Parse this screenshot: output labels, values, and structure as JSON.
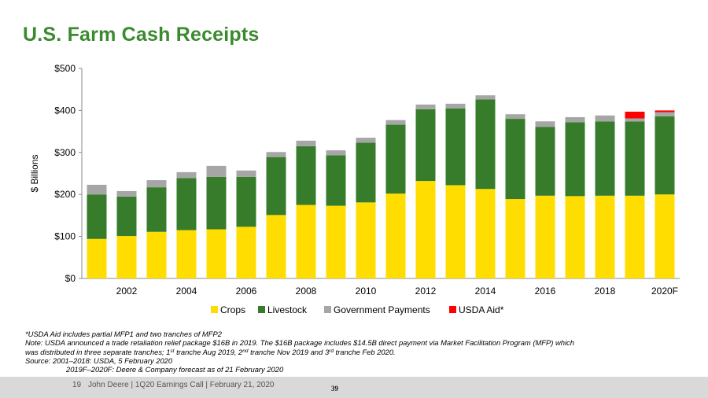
{
  "page": {
    "title": "U.S. Farm Cash Receipts"
  },
  "chart_data": {
    "type": "bar",
    "stacked": true,
    "ylabel": "$ Billions",
    "ylim": [
      0,
      500
    ],
    "yticks": [
      0,
      100,
      200,
      300,
      400,
      500
    ],
    "ytick_labels": [
      "$0",
      "$100",
      "$200",
      "$300",
      "$400",
      "$500"
    ],
    "categories": [
      "2001",
      "2002",
      "2003",
      "2004",
      "2005",
      "2006",
      "2007",
      "2008",
      "2009",
      "2010",
      "2011",
      "2012",
      "2013",
      "2014",
      "2015",
      "2016",
      "2017",
      "2018",
      "2019F",
      "2020F"
    ],
    "xtick_labels": [
      "",
      "2002",
      "",
      "2004",
      "",
      "2006",
      "",
      "2008",
      "",
      "2010",
      "",
      "2012",
      "",
      "2014",
      "",
      "2016",
      "",
      "2018",
      "",
      "2020F"
    ],
    "series": [
      {
        "name": "Crops",
        "color": "#ffdd00",
        "values": [
          94,
          101,
          111,
          115,
          117,
          123,
          151,
          175,
          173,
          181,
          202,
          232,
          222,
          213,
          189,
          197,
          196,
          197,
          197,
          200
        ]
      },
      {
        "name": "Livestock",
        "color": "#367c2b",
        "values": [
          106,
          94,
          106,
          124,
          125,
          119,
          138,
          140,
          120,
          142,
          164,
          171,
          183,
          213,
          191,
          164,
          176,
          177,
          177,
          186
        ]
      },
      {
        "name": "Government Payments",
        "color": "#a6a6a6",
        "values": [
          23,
          13,
          17,
          14,
          26,
          15,
          12,
          13,
          12,
          12,
          11,
          11,
          11,
          10,
          11,
          13,
          12,
          14,
          7,
          10
        ]
      },
      {
        "name": "USDA Aid*",
        "color": "#ff0000",
        "values": [
          0,
          0,
          0,
          0,
          0,
          0,
          0,
          0,
          0,
          0,
          0,
          0,
          0,
          0,
          0,
          0,
          0,
          0,
          16,
          4
        ]
      }
    ],
    "legend_position": "bottom",
    "grid": false
  },
  "notes": {
    "line1": "*USDA Aid includes partial MFP1 and two tranches of MFP2",
    "line2": "Note: USDA announced a trade retaliation relief package $16B in 2019. The $16B package includes $14.5B direct payment via Market Facilitation Program (MFP) which",
    "line3_a": "was distributed in three separate tranches; 1",
    "line3_sup1": "st",
    "line3_b": " tranche Aug 2019, 2",
    "line3_sup2": "nd",
    "line3_c": " tranche Nov 2019 and 3",
    "line3_sup3": "rd",
    "line3_d": " tranche Feb 2020.",
    "line4": "Source: 2001–2018: USDA, 5 February 2020",
    "line5": "2019F–2020F: Deere & Company forecast as of 21 February 2020"
  },
  "footer": {
    "slide_number": "19",
    "text": "John Deere | 1Q20 Earnings Call | February 21, 2020",
    "page_stamp": "39"
  }
}
